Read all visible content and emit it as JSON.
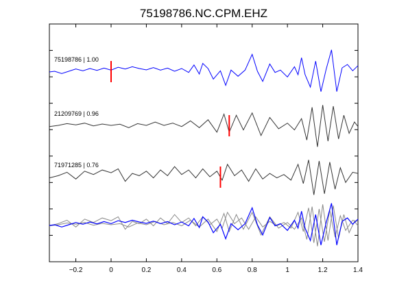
{
  "chart_data": {
    "type": "line",
    "title": "75198786.NC.CPM.EHZ",
    "xlabel": "",
    "ylabel": "",
    "xlim": [
      -0.35,
      1.4
    ],
    "x_ticks": [
      -0.2,
      0,
      0.2,
      0.4,
      0.6,
      0.8,
      1,
      1.2,
      1.4
    ],
    "x_tick_labels": [
      "−0.2",
      "0",
      "0.2",
      "0.4",
      "0.6",
      "0.8",
      "1",
      "1.2",
      "1.4"
    ],
    "grid": false,
    "colors": {
      "primary": "#0000ff",
      "other": "#333333",
      "overlay_other": "#888888",
      "pick": "#ff0000",
      "axes": "#000000"
    },
    "traces": [
      {
        "label": "75198786 | 1.00",
        "event_id": "75198786",
        "correlation": 1.0,
        "color": "#0000ff",
        "pick_time": 0.0,
        "samples": [
          [
            -0.35,
            -0.03
          ],
          [
            -0.32,
            0.0
          ],
          [
            -0.28,
            -0.1
          ],
          [
            -0.24,
            0.0
          ],
          [
            -0.2,
            0.1
          ],
          [
            -0.16,
            0.02
          ],
          [
            -0.12,
            0.12
          ],
          [
            -0.08,
            0.04
          ],
          [
            -0.04,
            0.14
          ],
          [
            0.0,
            0.05
          ],
          [
            0.04,
            0.18
          ],
          [
            0.08,
            0.1
          ],
          [
            0.12,
            0.2
          ],
          [
            0.16,
            0.12
          ],
          [
            0.2,
            0.06
          ],
          [
            0.24,
            0.16
          ],
          [
            0.28,
            0.05
          ],
          [
            0.32,
            0.14
          ],
          [
            0.36,
            0.0
          ],
          [
            0.4,
            0.12
          ],
          [
            0.44,
            -0.05
          ],
          [
            0.47,
            0.28
          ],
          [
            0.5,
            -0.12
          ],
          [
            0.52,
            0.35
          ],
          [
            0.55,
            0.12
          ],
          [
            0.58,
            -0.35
          ],
          [
            0.62,
            0.02
          ],
          [
            0.65,
            -0.62
          ],
          [
            0.68,
            0.05
          ],
          [
            0.72,
            -0.22
          ],
          [
            0.76,
            0.05
          ],
          [
            0.8,
            0.75
          ],
          [
            0.83,
            0.0
          ],
          [
            0.86,
            -0.45
          ],
          [
            0.9,
            0.32
          ],
          [
            0.93,
            -0.05
          ],
          [
            0.96,
            0.05
          ],
          [
            1.0,
            -0.25
          ],
          [
            1.04,
            0.2
          ],
          [
            1.06,
            -0.15
          ],
          [
            1.08,
            0.6
          ],
          [
            1.1,
            -0.15
          ],
          [
            1.13,
            -0.7
          ],
          [
            1.16,
            0.45
          ],
          [
            1.19,
            -0.9
          ],
          [
            1.22,
            0.1
          ],
          [
            1.25,
            0.95
          ],
          [
            1.28,
            -0.9
          ],
          [
            1.31,
            0.15
          ],
          [
            1.34,
            0.3
          ],
          [
            1.37,
            0.02
          ],
          [
            1.4,
            0.25
          ]
        ]
      },
      {
        "label": "21209769 | 0.96",
        "event_id": "21209769",
        "correlation": 0.96,
        "color": "#333333",
        "pick_time": 0.67,
        "samples": [
          [
            -0.35,
            -0.05
          ],
          [
            -0.3,
            0.0
          ],
          [
            -0.25,
            0.08
          ],
          [
            -0.2,
            0.02
          ],
          [
            -0.15,
            0.1
          ],
          [
            -0.1,
            -0.02
          ],
          [
            -0.05,
            0.06
          ],
          [
            0.0,
            0.0
          ],
          [
            0.05,
            0.05
          ],
          [
            0.1,
            -0.1
          ],
          [
            0.15,
            0.08
          ],
          [
            0.2,
            0.0
          ],
          [
            0.25,
            0.15
          ],
          [
            0.3,
            0.0
          ],
          [
            0.35,
            0.1
          ],
          [
            0.4,
            -0.05
          ],
          [
            0.45,
            0.2
          ],
          [
            0.5,
            -0.1
          ],
          [
            0.55,
            0.25
          ],
          [
            0.6,
            -0.3
          ],
          [
            0.64,
            0.5
          ],
          [
            0.67,
            -0.3
          ],
          [
            0.71,
            0.45
          ],
          [
            0.75,
            -0.2
          ],
          [
            0.8,
            0.55
          ],
          [
            0.85,
            -0.45
          ],
          [
            0.9,
            0.35
          ],
          [
            0.95,
            -0.15
          ],
          [
            1.0,
            0.1
          ],
          [
            1.04,
            -0.2
          ],
          [
            1.08,
            0.3
          ],
          [
            1.11,
            -0.65
          ],
          [
            1.14,
            0.8
          ],
          [
            1.17,
            -0.95
          ],
          [
            1.2,
            0.9
          ],
          [
            1.23,
            -0.7
          ],
          [
            1.26,
            0.85
          ],
          [
            1.29,
            -0.6
          ],
          [
            1.32,
            0.45
          ],
          [
            1.35,
            -0.35
          ],
          [
            1.38,
            0.15
          ],
          [
            1.4,
            -0.05
          ]
        ]
      },
      {
        "label": "71971285 | 0.76",
        "event_id": "71971285",
        "correlation": 0.76,
        "color": "#333333",
        "pick_time": 0.62,
        "samples": [
          [
            -0.35,
            -0.05
          ],
          [
            -0.3,
            0.05
          ],
          [
            -0.25,
            0.2
          ],
          [
            -0.2,
            -0.1
          ],
          [
            -0.15,
            0.25
          ],
          [
            -0.1,
            0.1
          ],
          [
            -0.05,
            0.3
          ],
          [
            0.0,
            0.18
          ],
          [
            0.04,
            0.35
          ],
          [
            0.08,
            -0.2
          ],
          [
            0.12,
            0.15
          ],
          [
            0.16,
            0.05
          ],
          [
            0.2,
            0.25
          ],
          [
            0.24,
            -0.05
          ],
          [
            0.28,
            0.3
          ],
          [
            0.32,
            0.05
          ],
          [
            0.36,
            0.45
          ],
          [
            0.4,
            0.1
          ],
          [
            0.44,
            0.3
          ],
          [
            0.48,
            -0.05
          ],
          [
            0.52,
            0.35
          ],
          [
            0.56,
            0.0
          ],
          [
            0.6,
            0.25
          ],
          [
            0.63,
            -0.15
          ],
          [
            0.66,
            0.55
          ],
          [
            0.7,
            0.05
          ],
          [
            0.74,
            0.3
          ],
          [
            0.78,
            -0.2
          ],
          [
            0.82,
            0.35
          ],
          [
            0.86,
            -0.1
          ],
          [
            0.9,
            0.15
          ],
          [
            0.94,
            -0.05
          ],
          [
            0.98,
            0.1
          ],
          [
            1.02,
            -0.15
          ],
          [
            1.06,
            0.55
          ],
          [
            1.09,
            -0.3
          ],
          [
            1.12,
            0.75
          ],
          [
            1.15,
            -0.8
          ],
          [
            1.18,
            0.7
          ],
          [
            1.21,
            -0.75
          ],
          [
            1.24,
            0.65
          ],
          [
            1.27,
            -0.55
          ],
          [
            1.3,
            0.4
          ],
          [
            1.33,
            -0.25
          ],
          [
            1.37,
            0.2
          ],
          [
            1.4,
            0.15
          ]
        ]
      }
    ]
  }
}
